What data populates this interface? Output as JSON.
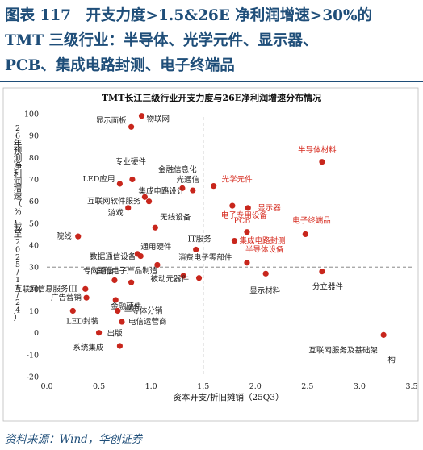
{
  "header": {
    "line1": "图表 117　开支力度>1.5&26E 净利润增速>30%的",
    "line2": "TMT 三级行业：半导体、光学元件、显示器、",
    "line3": "PCB、集成电路封测、电子终端品"
  },
  "source": "资料来源：Wind，华创证券",
  "colors": {
    "header": "#1f4e79",
    "highlight": "#d62b1f",
    "normal": "#222222",
    "point": "#c8261c"
  },
  "chart_data": {
    "type": "scatter",
    "title": "TMT长江三级行业开支力度与26E净利润增速分布情况",
    "xlabel": "资本开支/折旧摊销（25Q3）",
    "ylabel": "26年预测净利润增速（%，截至2025/11/24）",
    "xlim": [
      0.0,
      3.5
    ],
    "ylim": [
      -20,
      100
    ],
    "xticks": [
      "0.0",
      "0.5",
      "1.0",
      "1.5",
      "2.0",
      "2.5",
      "3.0",
      "3.5"
    ],
    "yticks": [
      "-20",
      "-10",
      "0",
      "10",
      "20",
      "30",
      "40",
      "50",
      "60",
      "70",
      "80",
      "90",
      "100"
    ],
    "grid": false,
    "reference_lines": {
      "x": 1.5,
      "y": 30
    },
    "points": [
      {
        "label": "物联网",
        "x": 0.91,
        "y": 99,
        "highlight": false
      },
      {
        "label": "显示面板",
        "x": 0.81,
        "y": 94,
        "highlight": false
      },
      {
        "label": "专业硬件",
        "x": 0.82,
        "y": 70,
        "highlight": false
      },
      {
        "label": "LED应用",
        "x": 0.7,
        "y": 68,
        "highlight": false
      },
      {
        "label": "金融信息化",
        "x": 1.3,
        "y": 66,
        "highlight": false
      },
      {
        "label": "光通信",
        "x": 1.4,
        "y": 65,
        "highlight": false
      },
      {
        "label": "集成电路设计",
        "x": 0.94,
        "y": 62,
        "highlight": false
      },
      {
        "label": "互联网软件服务",
        "x": 0.98,
        "y": 60,
        "highlight": false
      },
      {
        "label": "游戏",
        "x": 0.78,
        "y": 57,
        "highlight": false
      },
      {
        "label": "无线设备",
        "x": 1.04,
        "y": 48,
        "highlight": false
      },
      {
        "label": "院线",
        "x": 0.3,
        "y": 44,
        "highlight": false
      },
      {
        "label": "IT服务",
        "x": 1.43,
        "y": 38,
        "highlight": false
      },
      {
        "label": "通用硬件",
        "x": 0.87,
        "y": 36,
        "highlight": false
      },
      {
        "label": "数据通信设备",
        "x": 0.9,
        "y": 35,
        "highlight": false
      },
      {
        "label": "消费电子零部件",
        "x": 1.06,
        "y": 31,
        "highlight": false
      },
      {
        "label": "专网通信",
        "x": 0.65,
        "y": 24,
        "highlight": false
      },
      {
        "label": "其他电子产品制造",
        "x": 1.31,
        "y": 26,
        "highlight": false
      },
      {
        "label": "互联网信息服务III",
        "x": 0.37,
        "y": 20,
        "highlight": false
      },
      {
        "label": "被动元器件",
        "x": 1.46,
        "y": 25,
        "highlight": false
      },
      {
        "label": "广告营销",
        "x": 0.38,
        "y": 16,
        "highlight": false
      },
      {
        "label": "印制电路板",
        "x": 0.81,
        "y": 23,
        "highlight": false
      },
      {
        "label": "金融硬件",
        "x": 0.66,
        "y": 15,
        "highlight": false
      },
      {
        "label": "半导体分销",
        "x": 0.68,
        "y": 10,
        "highlight": false
      },
      {
        "label": "LED封装",
        "x": 0.25,
        "y": 10,
        "highlight": false
      },
      {
        "label": "电信运营商",
        "x": 0.72,
        "y": 5,
        "highlight": false
      },
      {
        "label": "出版",
        "x": 0.5,
        "y": 0,
        "highlight": false
      },
      {
        "label": "系统集成",
        "x": 0.7,
        "y": -6,
        "highlight": false
      },
      {
        "label": "半导体材料",
        "x": 2.64,
        "y": 78,
        "highlight": true
      },
      {
        "label": "光学元件",
        "x": 1.6,
        "y": 67,
        "highlight": true
      },
      {
        "label": "电子专用设备",
        "x": 1.78,
        "y": 58,
        "highlight": true
      },
      {
        "label": "显示器",
        "x": 1.93,
        "y": 57,
        "highlight": true
      },
      {
        "label": "PCB",
        "x": 1.92,
        "y": 46,
        "highlight": true
      },
      {
        "label": "电子终端品",
        "x": 2.48,
        "y": 45,
        "highlight": true
      },
      {
        "label": "集成电路封测",
        "x": 1.8,
        "y": 42,
        "highlight": true
      },
      {
        "label": "半导体设备",
        "x": 1.92,
        "y": 32,
        "highlight": true
      },
      {
        "label": "显示材料",
        "x": 2.1,
        "y": 27,
        "highlight": false
      },
      {
        "label": "分立器件",
        "x": 2.64,
        "y": 28,
        "highlight": false
      },
      {
        "label": "互联网服务及基础架构",
        "x": 3.23,
        "y": -1,
        "highlight": false
      }
    ]
  }
}
